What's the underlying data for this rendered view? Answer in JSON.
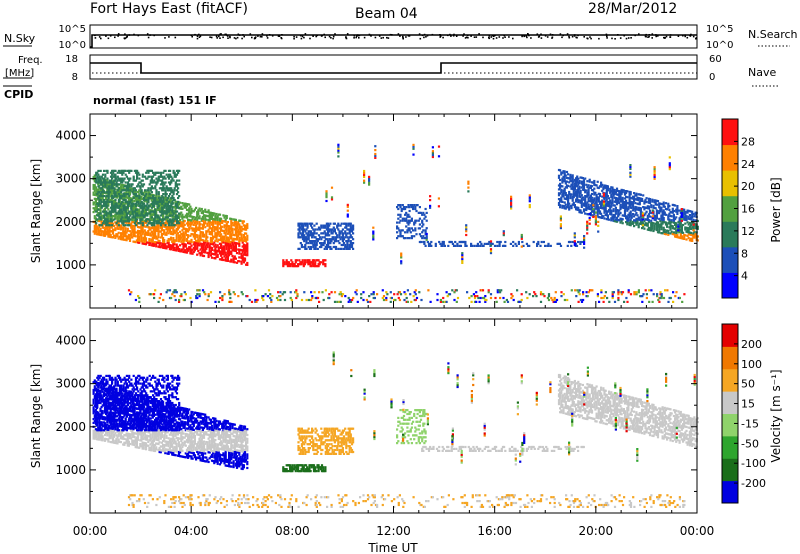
{
  "header": {
    "station": "Fort Hays East (fitACF)",
    "beam": "Beam 04",
    "date": "28/Mar/2012"
  },
  "noise_panel": {
    "left_label": "N.Sky",
    "left_ticks": [
      "10^5",
      "10^0"
    ],
    "right_ticks": [
      "10^5",
      "10^0"
    ],
    "right_label": "N.Search",
    "right_legend_style": "dotted"
  },
  "freq_panel": {
    "left_label_1": "Freq.",
    "left_label_2": "[MHz]",
    "left_ticks": [
      "18",
      "8"
    ],
    "right_ticks": [
      "60",
      "0"
    ],
    "right_label": "Nave",
    "right_legend_style": "dotted",
    "cpid_label": "CPID",
    "cpid_text": "normal (fast) 151 IF"
  },
  "x_axis": {
    "label": "Time UT",
    "ticks": [
      "00:00",
      "04:00",
      "08:00",
      "12:00",
      "16:00",
      "20:00",
      "00:00"
    ]
  },
  "chart_data": [
    {
      "type": "heatmap",
      "name": "power",
      "ylabel": "Slant Range [km]",
      "yticks": [
        "1000",
        "2000",
        "3000",
        "4000"
      ],
      "ylim": [
        0,
        4500
      ],
      "xlim": [
        0,
        24
      ],
      "colorbar_label": "Power [dB]",
      "colorbar_ticks": [
        "28",
        "24",
        "20",
        "16",
        "12",
        "8",
        "4"
      ],
      "colors": [
        "#0000ff",
        "#1c4fb8",
        "#2a7a5a",
        "#52a040",
        "#e8c000",
        "#ff8000",
        "#ff1010"
      ]
    },
    {
      "type": "heatmap",
      "name": "velocity",
      "ylabel": "Slant Range [km]",
      "yticks": [
        "1000",
        "2000",
        "3000",
        "4000"
      ],
      "ylim": [
        0,
        4500
      ],
      "xlim": [
        0,
        24
      ],
      "colorbar_label": "Velocity [m s⁻¹]",
      "colorbar_ticks": [
        "200",
        "100",
        "50",
        "15",
        "-15",
        "-50",
        "-100",
        "-200"
      ],
      "colors": [
        "#0000e0",
        "#1a6e1a",
        "#2ea52e",
        "#8fd36b",
        "#c8c8c8",
        "#f5a623",
        "#f07800",
        "#e40000"
      ]
    }
  ]
}
